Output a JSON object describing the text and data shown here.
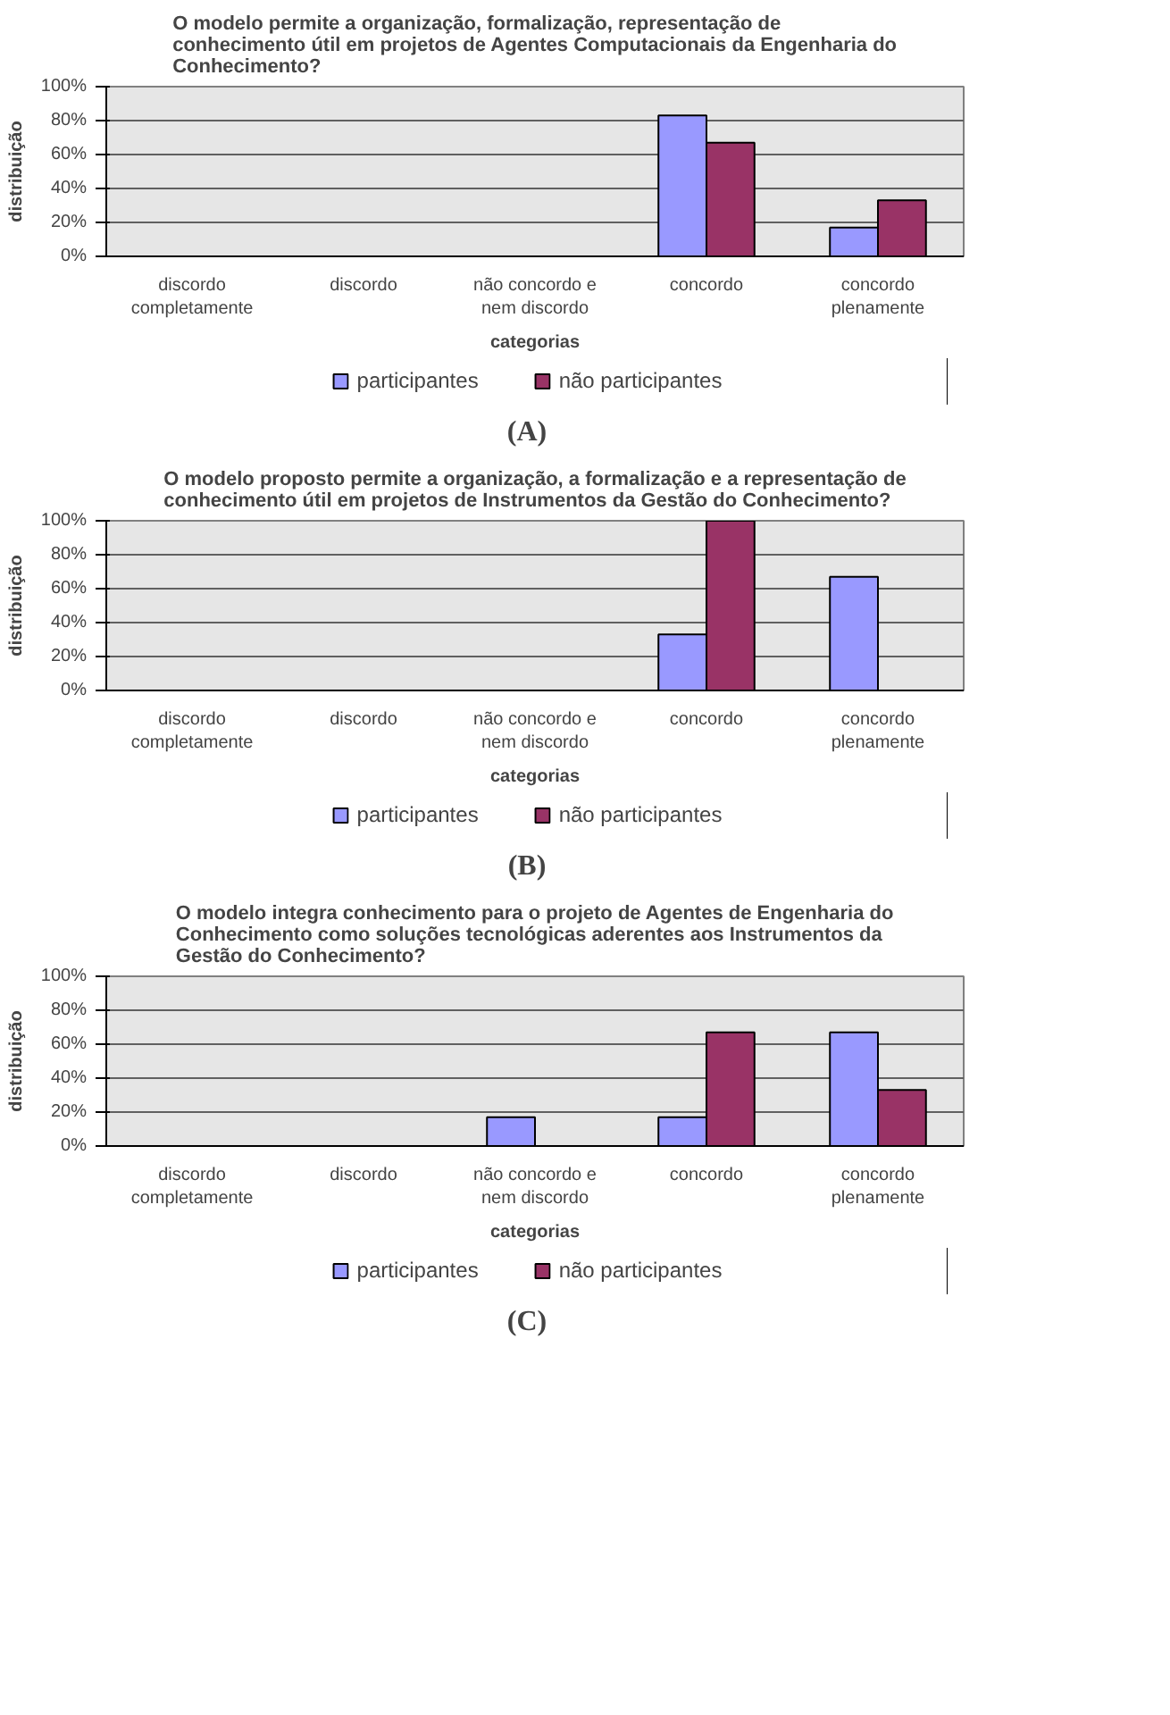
{
  "chart_data": [
    {
      "type": "bar",
      "title": "O modelo permite a organização, formalização, representação de\nconhecimento útil em projetos de Agentes Computacionais da Engenharia do\nConhecimento?",
      "xlabel": "categorias",
      "ylabel": "distribuição",
      "categories": [
        "discordo\ncompletamente",
        "discordo",
        "não concordo e\nnem discordo",
        "concordo",
        "concordo\nplenamente"
      ],
      "series": [
        {
          "name": "participantes",
          "color": "#9999ff",
          "values": [
            0,
            0,
            0,
            83,
            17
          ]
        },
        {
          "name": "não participantes",
          "color": "#993366",
          "values": [
            0,
            0,
            0,
            67,
            33
          ]
        }
      ],
      "ylim": [
        0,
        100
      ],
      "yticks": [
        {
          "value": 0,
          "label": "0%"
        },
        {
          "value": 20,
          "label": "20%"
        },
        {
          "value": 40,
          "label": "40%"
        },
        {
          "value": 60,
          "label": "60%"
        },
        {
          "value": 80,
          "label": "80%"
        },
        {
          "value": 100,
          "label": "100%"
        }
      ],
      "grid": "y",
      "legend": "bottom",
      "annotations": [
        "(A)"
      ]
    },
    {
      "type": "bar",
      "title": "O modelo proposto permite a organização, a formalização e a representação de\nconhecimento útil em projetos de Instrumentos da Gestão do Conhecimento?",
      "xlabel": "categorias",
      "ylabel": "distribuição",
      "categories": [
        "discordo\ncompletamente",
        "discordo",
        "não concordo e\nnem discordo",
        "concordo",
        "concordo\nplenamente"
      ],
      "series": [
        {
          "name": "participantes",
          "color": "#9999ff",
          "values": [
            0,
            0,
            0,
            33,
            67
          ]
        },
        {
          "name": "não participantes",
          "color": "#993366",
          "values": [
            0,
            0,
            0,
            100,
            0
          ]
        }
      ],
      "ylim": [
        0,
        100
      ],
      "yticks": [
        {
          "value": 0,
          "label": "0%"
        },
        {
          "value": 20,
          "label": "20%"
        },
        {
          "value": 40,
          "label": "40%"
        },
        {
          "value": 60,
          "label": "60%"
        },
        {
          "value": 80,
          "label": "80%"
        },
        {
          "value": 100,
          "label": "100%"
        }
      ],
      "grid": "y",
      "legend": "bottom",
      "annotations": [
        "(B)"
      ]
    },
    {
      "type": "bar",
      "title": "O modelo integra conhecimento para o projeto de Agentes de Engenharia do\nConhecimento como soluções tecnológicas aderentes aos Instrumentos da\nGestão do Conhecimento?",
      "xlabel": "categorias",
      "ylabel": "distribuição",
      "categories": [
        "discordo\ncompletamente",
        "discordo",
        "não concordo e\nnem discordo",
        "concordo",
        "concordo\nplenamente"
      ],
      "series": [
        {
          "name": "participantes",
          "color": "#9999ff",
          "values": [
            0,
            0,
            17,
            17,
            67
          ]
        },
        {
          "name": "não participantes",
          "color": "#993366",
          "values": [
            0,
            0,
            0,
            67,
            33
          ]
        }
      ],
      "ylim": [
        0,
        100
      ],
      "yticks": [
        {
          "value": 0,
          "label": "0%"
        },
        {
          "value": 20,
          "label": "20%"
        },
        {
          "value": 40,
          "label": "40%"
        },
        {
          "value": 60,
          "label": "60%"
        },
        {
          "value": 80,
          "label": "80%"
        },
        {
          "value": 100,
          "label": "100%"
        }
      ],
      "grid": "y",
      "legend": "bottom",
      "annotations": [
        "(C)"
      ]
    }
  ]
}
